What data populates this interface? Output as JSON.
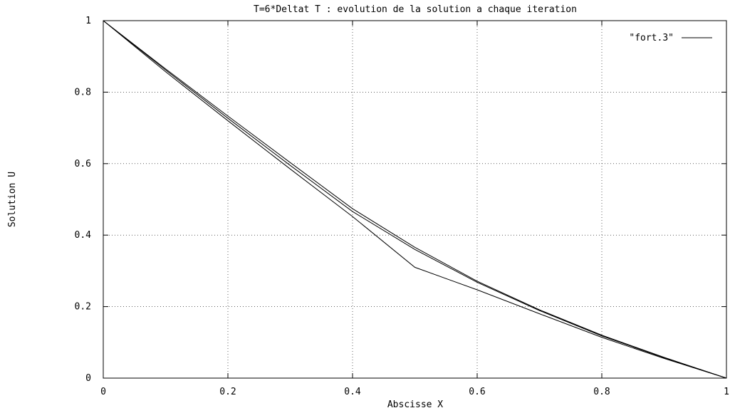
{
  "chart_data": {
    "type": "line",
    "title": "T=6*Deltat T : evolution de la solution a chaque iteration",
    "xlabel": "Abscisse X",
    "ylabel": "Solution U",
    "xlim": [
      0,
      1
    ],
    "ylim": [
      0,
      1
    ],
    "xticks": [
      0,
      0.2,
      0.4,
      0.6,
      0.8,
      1
    ],
    "xtick_labels": [
      "0",
      "0.2",
      "0.4",
      "0.6",
      "0.8",
      "1"
    ],
    "yticks": [
      0,
      0.2,
      0.4,
      0.6,
      0.8,
      1
    ],
    "ytick_labels": [
      "0",
      "0.2",
      "0.4",
      "0.6",
      "0.8",
      "1"
    ],
    "grid": true,
    "legend": {
      "position": "top-right",
      "entries": [
        "\"fort.3\""
      ]
    },
    "series": [
      {
        "x": [
          0,
          0.1,
          0.2,
          0.3,
          0.4,
          0.5,
          0.6,
          0.7,
          0.8,
          0.9,
          1.0
        ],
        "y": [
          1.0,
          0.865,
          0.733,
          0.603,
          0.474,
          0.366,
          0.271,
          0.191,
          0.12,
          0.058,
          0.0
        ]
      },
      {
        "x": [
          0,
          0.1,
          0.2,
          0.3,
          0.4,
          0.5,
          0.6,
          0.7,
          0.8,
          0.9,
          1.0
        ],
        "y": [
          1.0,
          0.862,
          0.727,
          0.595,
          0.466,
          0.36,
          0.268,
          0.189,
          0.118,
          0.057,
          0.0
        ]
      },
      {
        "x": [
          0,
          0.1,
          0.2,
          0.3,
          0.4,
          0.5,
          0.6,
          0.7,
          0.8,
          0.9,
          1.0
        ],
        "y": [
          1.0,
          0.857,
          0.72,
          0.585,
          0.452,
          0.31,
          0.247,
          0.18,
          0.114,
          0.055,
          0.0
        ]
      }
    ]
  }
}
